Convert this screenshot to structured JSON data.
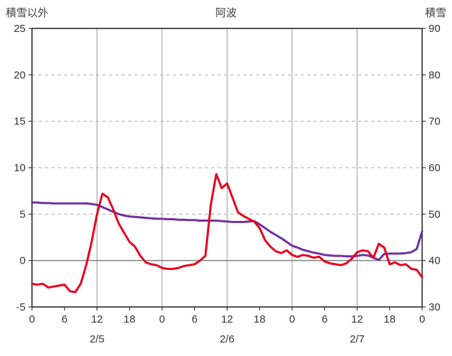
{
  "header": {
    "left_axis_title": "積雪以外",
    "title": "阿波",
    "right_axis_title": "積雪"
  },
  "chart_data": {
    "type": "line",
    "title": "阿波",
    "left_axis": {
      "label": "積雪以外",
      "min": -5,
      "max": 25,
      "ticks": [
        25,
        20,
        15,
        10,
        5,
        0,
        -5
      ]
    },
    "right_axis": {
      "label": "積雪",
      "min": 30,
      "max": 90,
      "ticks": [
        90,
        80,
        70,
        60,
        50,
        40,
        30
      ]
    },
    "x_axis": {
      "hours_total": 72,
      "tick_step_hours": 6,
      "tick_labels": [
        "0",
        "6",
        "12",
        "18",
        "0",
        "6",
        "12",
        "18",
        "0",
        "6",
        "12",
        "18",
        "0"
      ],
      "date_labels": [
        {
          "hour": 12,
          "label": "2/5"
        },
        {
          "hour": 36,
          "label": "2/6"
        },
        {
          "hour": 60,
          "label": "2/7"
        }
      ]
    },
    "grid": {
      "horizontal_dashed_left_values": [
        20,
        15,
        10,
        5
      ],
      "zero_line_left_value": 0,
      "vertical_line_hours": [
        12,
        24,
        36,
        48,
        60
      ]
    },
    "colors": {
      "red_series": "#e8001c",
      "purple_series": "#7030a0",
      "grid": "#b0b0b0",
      "vgrid": "#9a9a9a",
      "zero_line": "#808080",
      "frame": "#1a1a1a"
    },
    "series": [
      {
        "name": "snow-depth-purple",
        "axis": "right",
        "color": "#7030a0",
        "x_start": 0,
        "x_step": 1,
        "values": [
          52.5,
          52.5,
          52.4,
          52.4,
          52.3,
          52.3,
          52.3,
          52.3,
          52.3,
          52.3,
          52.3,
          52.2,
          52.0,
          51.5,
          51.0,
          50.5,
          50.0,
          49.7,
          49.5,
          49.4,
          49.3,
          49.2,
          49.1,
          49.0,
          49.0,
          48.9,
          48.9,
          48.8,
          48.8,
          48.7,
          48.7,
          48.6,
          48.6,
          48.6,
          48.6,
          48.5,
          48.4,
          48.3,
          48.3,
          48.3,
          48.4,
          48.5,
          47.8,
          47.0,
          46.2,
          45.5,
          44.8,
          44.0,
          43.2,
          42.8,
          42.3,
          42.0,
          41.7,
          41.5,
          41.2,
          41.1,
          41.0,
          41.0,
          40.9,
          40.9,
          41.0,
          41.2,
          41.1,
          40.6,
          40.1,
          41.4,
          41.5,
          41.5,
          41.5,
          41.6,
          41.8,
          42.5,
          46.3
        ]
      },
      {
        "name": "non-snow-red",
        "axis": "left",
        "color": "#e8001c",
        "x_start": 0,
        "x_step": 1,
        "values": [
          -2.5,
          -2.6,
          -2.5,
          -2.9,
          -2.8,
          -2.7,
          -2.6,
          -3.3,
          -3.4,
          -2.5,
          -0.5,
          2.0,
          5.0,
          7.2,
          6.8,
          5.5,
          4.0,
          3.0,
          2.0,
          1.5,
          0.5,
          -0.2,
          -0.4,
          -0.5,
          -0.8,
          -0.9,
          -0.9,
          -0.8,
          -0.6,
          -0.5,
          -0.4,
          0.0,
          0.5,
          6.0,
          9.3,
          7.8,
          8.3,
          6.8,
          5.2,
          4.8,
          4.5,
          4.2,
          3.5,
          2.2,
          1.5,
          1.0,
          0.8,
          1.1,
          0.6,
          0.4,
          0.6,
          0.5,
          0.3,
          0.4,
          -0.1,
          -0.3,
          -0.4,
          -0.5,
          -0.3,
          0.2,
          0.9,
          1.1,
          1.0,
          0.3,
          1.8,
          1.4,
          -0.4,
          -0.2,
          -0.5,
          -0.4,
          -0.9,
          -1.0,
          -1.8
        ]
      }
    ]
  }
}
